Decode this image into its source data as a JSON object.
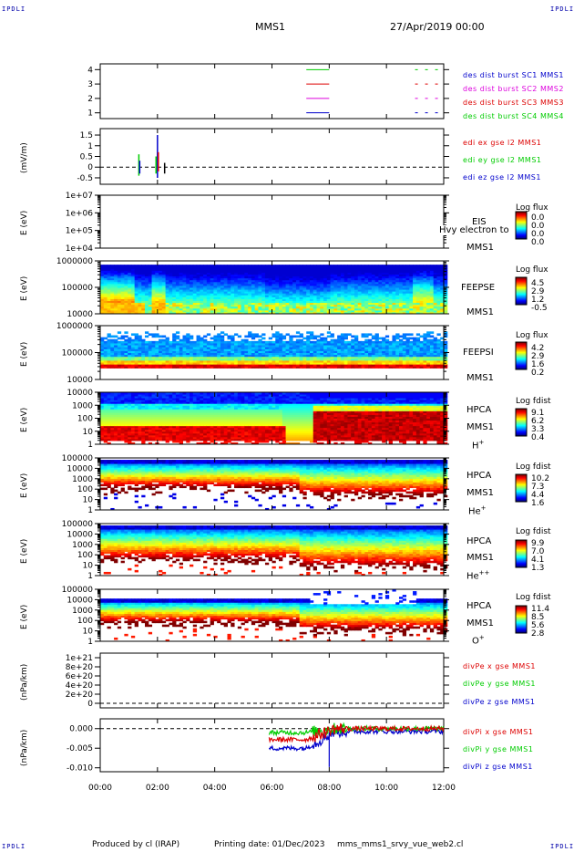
{
  "corners": {
    "tl": "IPDLI",
    "tr": "IPDLI",
    "bl": "IPDLI",
    "br": "IPDLI"
  },
  "header": {
    "spacecraft": "MMS1",
    "date": "27/Apr/2019 00:00"
  },
  "colors": {
    "red": "#dd0000",
    "green": "#00cc00",
    "blue": "#0000cc",
    "magenta": "#dd00dd"
  },
  "footer": {
    "produced": "Produced by cl (IRAP)",
    "printing": "Printing date: 01/Dec/2023",
    "file": "mms_mms1_srvy_vue_web2.cl"
  },
  "chart_data": [
    {
      "id": "p1",
      "type": "line",
      "ylim": [
        0.6,
        4.4
      ],
      "yticks": [
        "1",
        "2",
        "3",
        "4"
      ],
      "ylabel": "",
      "legend": [
        {
          "text": "des dist burst SC1 MMS1",
          "color": "#0000cc"
        },
        {
          "text": "des dist burst SC2 MMS2",
          "color": "#dd00dd"
        },
        {
          "text": "des dist burst SC3 MMS3",
          "color": "#dd0000"
        },
        {
          "text": "des dist burst SC4 MMS4",
          "color": "#00cc00"
        }
      ],
      "series": [
        {
          "name": "SC1",
          "level": 1,
          "color": "#0000cc",
          "segments": [
            [
              7.2,
              8.0
            ],
            [
              11.0,
              12.0
            ]
          ]
        },
        {
          "name": "SC2",
          "level": 2,
          "color": "#dd00dd",
          "segments": [
            [
              7.2,
              8.0
            ],
            [
              11.0,
              12.0
            ]
          ]
        },
        {
          "name": "SC3",
          "level": 3,
          "color": "#dd0000",
          "segments": [
            [
              7.2,
              8.0
            ],
            [
              11.0,
              12.0
            ]
          ]
        },
        {
          "name": "SC4",
          "level": 4,
          "color": "#00cc00",
          "segments": [
            [
              7.2,
              8.0
            ],
            [
              11.0,
              12.0
            ]
          ]
        }
      ]
    },
    {
      "id": "p2",
      "type": "line",
      "ylim": [
        -0.8,
        1.8
      ],
      "yticks": [
        "-0.5",
        "0",
        "0.5",
        "1",
        "1.5"
      ],
      "ytickvals": [
        -0.5,
        0,
        0.5,
        1,
        1.5
      ],
      "ylabel": "(mV/m)",
      "zero_line": true,
      "legend": [
        {
          "text": "edi ex gse l2 MMS1",
          "color": "#dd0000"
        },
        {
          "text": "edi ey gse l2 MMS1",
          "color": "#00cc00"
        },
        {
          "text": "edi ez gse l2 MMS1",
          "color": "#0000cc"
        }
      ],
      "bursts": [
        {
          "t": 1.35,
          "min": -0.4,
          "max": 0.6,
          "color": "#00cc00"
        },
        {
          "t": 1.38,
          "min": -0.3,
          "max": 0.3,
          "color": "#0000cc"
        },
        {
          "t": 1.95,
          "min": -0.3,
          "max": 0.5,
          "color": "#00cc00"
        },
        {
          "t": 2.0,
          "min": -0.5,
          "max": 1.5,
          "color": "#0000cc"
        },
        {
          "t": 2.03,
          "min": -0.2,
          "max": 0.7,
          "color": "#dd0000"
        },
        {
          "t": 2.25,
          "min": -0.3,
          "max": 0.2,
          "color": "#000000"
        }
      ]
    },
    {
      "id": "p3",
      "type": "heatmap",
      "yticks": [
        "1e+04",
        "1e+05",
        "1e+06",
        "1e+07"
      ],
      "ylabel": "E (eV)",
      "instrument": [
        "EIS",
        "MMS1"
      ],
      "overlay": "Hvy electron to",
      "colorbar": {
        "title": "Log flux",
        "values": [
          "0.0",
          "0.0",
          "0.0",
          "0.0"
        ]
      },
      "data": "empty"
    },
    {
      "id": "p4",
      "type": "heatmap",
      "yticks": [
        "10000",
        "100000",
        "1000000"
      ],
      "ylabel": "E (eV)",
      "instrument": [
        "FEEPSE",
        "MMS1"
      ],
      "colorbar": {
        "title": "Log flux",
        "values": [
          "4.5",
          "2.9",
          "1.2",
          "-0.5"
        ]
      },
      "profile": "electrons"
    },
    {
      "id": "p5",
      "type": "heatmap",
      "yticks": [
        "10000",
        "100000",
        "1000000"
      ],
      "ylabel": "E (eV)",
      "instrument": [
        "FEEPSI",
        "MMS1"
      ],
      "colorbar": {
        "title": "Log flux",
        "values": [
          "4.2",
          "2.9",
          "1.6",
          "0.2"
        ]
      },
      "profile": "ions"
    },
    {
      "id": "p6",
      "type": "heatmap",
      "yticks": [
        "1",
        "10",
        "100",
        "1000",
        "10000"
      ],
      "ylabel": "E (eV)",
      "instrument": [
        "HPCA",
        "MMS1"
      ],
      "species": "H",
      "charge": "+",
      "colorbar": {
        "title": "Log fdist",
        "values": [
          "9.1",
          "6.2",
          "3.3",
          "0.4"
        ]
      },
      "profile": "h"
    },
    {
      "id": "p7",
      "type": "heatmap",
      "yticks": [
        "1",
        "10",
        "100",
        "1000",
        "10000",
        "100000"
      ],
      "ylabel": "E (eV)",
      "instrument": [
        "HPCA",
        "MMS1"
      ],
      "species": "He",
      "charge": "+",
      "colorbar": {
        "title": "Log fdist",
        "values": [
          "10.2",
          "7.3",
          "4.4",
          "1.6"
        ]
      },
      "profile": "he1"
    },
    {
      "id": "p8",
      "type": "heatmap",
      "yticks": [
        "1",
        "10",
        "100",
        "1000",
        "10000",
        "100000"
      ],
      "ylabel": "E (eV)",
      "instrument": [
        "HPCA",
        "MMS1"
      ],
      "species": "He",
      "charge": "++",
      "colorbar": {
        "title": "Log fdist",
        "values": [
          "9.9",
          "7.0",
          "4.1",
          "1.3"
        ]
      },
      "profile": "he2"
    },
    {
      "id": "p9",
      "type": "heatmap",
      "yticks": [
        "1",
        "10",
        "100",
        "1000",
        "10000",
        "100000"
      ],
      "ylabel": "E (eV)",
      "instrument": [
        "HPCA",
        "MMS1"
      ],
      "species": "O",
      "charge": "+",
      "colorbar": {
        "title": "Log fdist",
        "values": [
          "11.4",
          "8.5",
          "5.6",
          "2.8"
        ]
      },
      "profile": "o"
    },
    {
      "id": "p10",
      "type": "line",
      "ylim": [
        -1e+20,
        1.1e+21
      ],
      "yticks": [
        "0",
        "2e+20",
        "4e+20",
        "6e+20",
        "8e+20",
        "1e+21"
      ],
      "ytickvals": [
        0,
        2e+20,
        4e+20,
        6e+20,
        8e+20,
        1e+21
      ],
      "ylabel": "(nPa/km)",
      "zero_line": true,
      "legend": [
        {
          "text": "divPe x gse MMS1",
          "color": "#dd0000"
        },
        {
          "text": "divPe y gse MMS1",
          "color": "#00cc00"
        },
        {
          "text": "divPe z gse MMS1",
          "color": "#0000cc"
        }
      ],
      "data": "empty"
    },
    {
      "id": "p11",
      "type": "line",
      "ylim": [
        -0.011,
        0.0025
      ],
      "yticks": [
        "-0.010",
        "-0.005",
        "0.000"
      ],
      "ytickvals": [
        -0.01,
        -0.005,
        0
      ],
      "ylabel": "(nPa/km)",
      "zero_line": true,
      "legend": [
        {
          "text": "divPi x gse MMS1",
          "color": "#dd0000"
        },
        {
          "text": "divPi y gse MMS1",
          "color": "#00cc00"
        },
        {
          "text": "divPi z gse MMS1",
          "color": "#0000cc"
        }
      ],
      "series": [
        {
          "name": "x",
          "color": "#dd0000",
          "start": 5.9,
          "start_value": -0.0028,
          "end_value": 0.0
        },
        {
          "name": "y",
          "color": "#00cc00",
          "start": 5.9,
          "start_value": -0.001,
          "end_value": 0.0
        },
        {
          "name": "z",
          "color": "#0000cc",
          "start": 5.9,
          "start_value": -0.005,
          "end_value": -0.0007
        }
      ]
    }
  ],
  "xaxis": {
    "range": [
      0,
      12
    ],
    "ticks": [
      "00:00",
      "02:00",
      "04:00",
      "06:00",
      "08:00",
      "10:00",
      "12:00"
    ]
  }
}
